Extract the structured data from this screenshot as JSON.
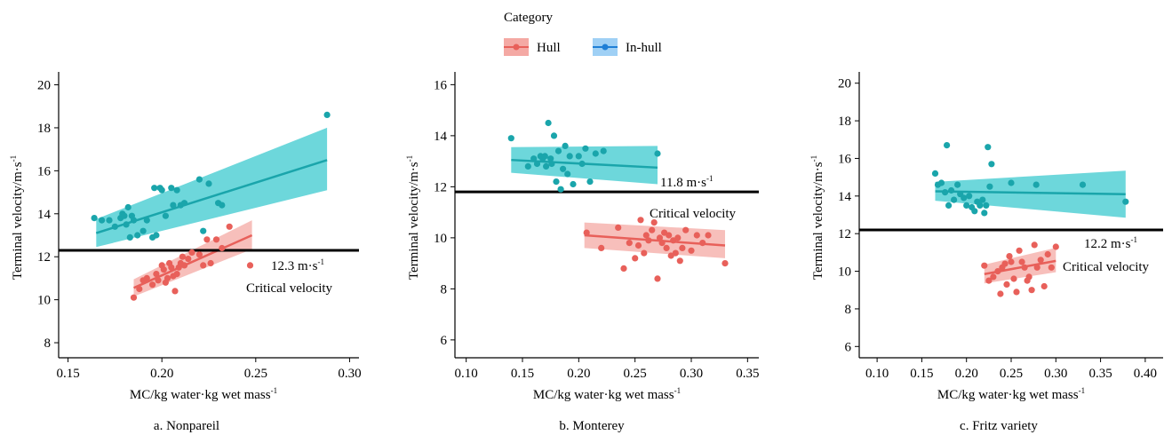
{
  "legend": {
    "title": "Category",
    "placement": "top-center",
    "entries": [
      {
        "label": "Hull",
        "color": "#e8605a",
        "band": "#f4a9a4"
      },
      {
        "label": "In-hull",
        "color": "#1aa5ab",
        "band": "#3cc9cf"
      }
    ]
  },
  "chart_data": [
    {
      "type": "scatter",
      "caption": "a. Nonpareil",
      "xlabel": "MC/kg water·kg wet mass",
      "xlabel_sup": "-1",
      "ylabel": "Terminal velocity/m·s",
      "ylabel_sup": "-1",
      "xlim": [
        0.145,
        0.305
      ],
      "ylim": [
        7.3,
        20.6
      ],
      "xticks": [
        0.15,
        0.2,
        0.25,
        0.3
      ],
      "xtick_labels": [
        "0.15",
        "0.20",
        "0.25",
        "0.30"
      ],
      "yticks": [
        8,
        10,
        12,
        14,
        16,
        18,
        20
      ],
      "ytick_labels": [
        "8",
        "10",
        "12",
        "14",
        "16",
        "18",
        "20"
      ],
      "grid": false,
      "critical": {
        "value": 12.3,
        "label": "12.3 m·s",
        "sup": "-1",
        "sublabel": "Critical velocity"
      },
      "series": [
        {
          "name": "Hull",
          "color": "#e8605a",
          "band": "#f4a9a4",
          "x": [
            0.185,
            0.188,
            0.19,
            0.192,
            0.195,
            0.197,
            0.198,
            0.2,
            0.201,
            0.202,
            0.203,
            0.204,
            0.205,
            0.206,
            0.207,
            0.208,
            0.209,
            0.21,
            0.211,
            0.212,
            0.214,
            0.216,
            0.22,
            0.222,
            0.224,
            0.226,
            0.229,
            0.232,
            0.236,
            0.247
          ],
          "y": [
            10.1,
            10.5,
            10.9,
            11.0,
            10.7,
            11.2,
            10.9,
            11.6,
            11.4,
            10.8,
            11.0,
            11.7,
            11.5,
            11.1,
            10.4,
            11.2,
            11.5,
            11.7,
            12.0,
            11.6,
            11.9,
            12.2,
            12.1,
            11.6,
            12.8,
            11.7,
            12.8,
            12.4,
            13.4,
            11.6
          ],
          "fit": {
            "x": [
              0.185,
              0.248
            ],
            "y": [
              10.55,
              13.0
            ],
            "band_low": [
              10.15,
              12.35
            ],
            "band_high": [
              10.95,
              13.7
            ]
          }
        },
        {
          "name": "In-hull",
          "color": "#1aa5ab",
          "band": "#3cc9cf",
          "x": [
            0.164,
            0.168,
            0.172,
            0.175,
            0.178,
            0.179,
            0.18,
            0.181,
            0.182,
            0.183,
            0.184,
            0.185,
            0.187,
            0.19,
            0.192,
            0.195,
            0.196,
            0.197,
            0.199,
            0.2,
            0.202,
            0.205,
            0.206,
            0.208,
            0.21,
            0.212,
            0.22,
            0.222,
            0.225,
            0.23,
            0.232,
            0.288
          ],
          "y": [
            13.8,
            13.7,
            13.7,
            13.4,
            13.8,
            14.0,
            13.9,
            13.5,
            14.3,
            12.9,
            13.9,
            13.7,
            13.0,
            13.2,
            13.7,
            12.9,
            15.2,
            13.0,
            15.2,
            15.1,
            13.9,
            15.2,
            14.4,
            15.1,
            14.4,
            14.5,
            15.6,
            13.2,
            15.4,
            14.5,
            14.4,
            18.6
          ],
          "fit": {
            "x": [
              0.165,
              0.288
            ],
            "y": [
              13.1,
              16.5
            ],
            "band_low": [
              12.45,
              15.1
            ],
            "band_high": [
              13.75,
              18.0
            ]
          }
        }
      ]
    },
    {
      "type": "scatter",
      "caption": "b. Monterey",
      "xlabel": "MC/kg water·kg wet mass",
      "xlabel_sup": "-1",
      "ylabel": "Terminal velocity/m·s",
      "ylabel_sup": "-1",
      "xlim": [
        0.09,
        0.36
      ],
      "ylim": [
        5.3,
        16.5
      ],
      "xticks": [
        0.1,
        0.15,
        0.2,
        0.25,
        0.3,
        0.35
      ],
      "xtick_labels": [
        "0.10",
        "0.15",
        "0.20",
        "0.25",
        "0.30",
        "0.35"
      ],
      "yticks": [
        6,
        8,
        10,
        12,
        14,
        16
      ],
      "ytick_labels": [
        "6",
        "8",
        "10",
        "12",
        "14",
        "16"
      ],
      "grid": false,
      "critical": {
        "value": 11.8,
        "label": "11.8 m·s",
        "sup": "-1",
        "sublabel": "Critical velocity"
      },
      "series": [
        {
          "name": "Hull",
          "color": "#e8605a",
          "band": "#f4a9a4",
          "x": [
            0.207,
            0.22,
            0.235,
            0.24,
            0.245,
            0.25,
            0.253,
            0.255,
            0.258,
            0.26,
            0.262,
            0.265,
            0.267,
            0.27,
            0.272,
            0.274,
            0.276,
            0.278,
            0.28,
            0.282,
            0.284,
            0.286,
            0.288,
            0.29,
            0.292,
            0.295,
            0.3,
            0.305,
            0.31,
            0.315,
            0.33
          ],
          "y": [
            10.2,
            9.6,
            10.4,
            8.8,
            9.8,
            9.2,
            9.7,
            10.7,
            9.4,
            10.1,
            9.9,
            10.3,
            10.6,
            8.4,
            10.0,
            9.8,
            10.2,
            9.6,
            10.1,
            9.3,
            9.9,
            9.4,
            10.0,
            9.1,
            9.6,
            10.3,
            9.5,
            10.1,
            9.8,
            10.1,
            9.0
          ],
          "fit": {
            "x": [
              0.205,
              0.33
            ],
            "y": [
              10.1,
              9.7
            ],
            "band_low": [
              9.6,
              9.2
            ],
            "band_high": [
              10.6,
              10.3
            ]
          }
        },
        {
          "name": "In-hull",
          "color": "#1aa5ab",
          "band": "#3cc9cf",
          "x": [
            0.14,
            0.155,
            0.16,
            0.163,
            0.166,
            0.168,
            0.17,
            0.171,
            0.173,
            0.175,
            0.176,
            0.178,
            0.18,
            0.182,
            0.184,
            0.186,
            0.188,
            0.19,
            0.192,
            0.195,
            0.2,
            0.203,
            0.206,
            0.21,
            0.215,
            0.222,
            0.27
          ],
          "y": [
            13.9,
            12.8,
            13.1,
            12.9,
            13.2,
            13.1,
            13.2,
            12.8,
            14.5,
            13.1,
            12.9,
            14.0,
            12.2,
            13.4,
            11.9,
            12.7,
            13.6,
            12.5,
            13.2,
            12.1,
            13.2,
            12.9,
            13.5,
            12.2,
            13.3,
            13.4,
            13.3
          ],
          "fit": {
            "x": [
              0.14,
              0.27
            ],
            "y": [
              13.05,
              12.75
            ],
            "band_low": [
              12.55,
              12.1
            ],
            "band_high": [
              13.55,
              13.6
            ]
          }
        }
      ]
    },
    {
      "type": "scatter",
      "caption": "c. Fritz variety",
      "xlabel": "MC/kg water·kg wet mass",
      "xlabel_sup": "-1",
      "ylabel": "Terminal velocity/m·s",
      "ylabel_sup": "-1",
      "xlim": [
        0.08,
        0.42
      ],
      "ylim": [
        5.4,
        20.6
      ],
      "xticks": [
        0.1,
        0.15,
        0.2,
        0.25,
        0.3,
        0.35,
        0.4
      ],
      "xtick_labels": [
        "0.10",
        "0.15",
        "0.20",
        "0.25",
        "0.30",
        "0.35",
        "0.40"
      ],
      "yticks": [
        6,
        8,
        10,
        12,
        14,
        16,
        18,
        20
      ],
      "ytick_labels": [
        "6",
        "8",
        "10",
        "12",
        "14",
        "16",
        "18",
        "20"
      ],
      "grid": false,
      "critical": {
        "value": 12.2,
        "label": "12.2 m·s",
        "sup": "-1",
        "sublabel": "Critical velocity"
      },
      "series": [
        {
          "name": "Hull",
          "color": "#e8605a",
          "band": "#f4a9a4",
          "x": [
            0.22,
            0.225,
            0.23,
            0.235,
            0.238,
            0.24,
            0.243,
            0.245,
            0.248,
            0.25,
            0.253,
            0.256,
            0.259,
            0.262,
            0.265,
            0.268,
            0.27,
            0.273,
            0.276,
            0.279,
            0.283,
            0.287,
            0.291,
            0.295,
            0.3
          ],
          "y": [
            10.3,
            9.5,
            9.7,
            10.0,
            8.8,
            10.2,
            10.4,
            9.3,
            10.8,
            10.5,
            9.6,
            8.9,
            11.1,
            10.5,
            10.2,
            9.5,
            9.7,
            9.0,
            11.4,
            10.2,
            10.6,
            9.2,
            10.9,
            10.2,
            11.3
          ],
          "fit": {
            "x": [
              0.22,
              0.3
            ],
            "y": [
              9.85,
              10.55
            ],
            "band_low": [
              9.35,
              9.95
            ],
            "band_high": [
              10.35,
              11.25
            ]
          }
        },
        {
          "name": "In-hull",
          "color": "#1aa5ab",
          "band": "#3cc9cf",
          "x": [
            0.165,
            0.168,
            0.172,
            0.176,
            0.178,
            0.18,
            0.183,
            0.186,
            0.19,
            0.193,
            0.197,
            0.2,
            0.203,
            0.206,
            0.209,
            0.212,
            0.215,
            0.218,
            0.22,
            0.222,
            0.224,
            0.226,
            0.228,
            0.25,
            0.278,
            0.33,
            0.378
          ],
          "y": [
            15.2,
            14.6,
            14.7,
            14.2,
            16.7,
            13.5,
            14.3,
            13.8,
            14.6,
            14.1,
            13.9,
            13.5,
            14.0,
            13.4,
            13.2,
            13.7,
            13.5,
            13.8,
            13.1,
            13.5,
            16.6,
            14.5,
            15.7,
            14.7,
            14.6,
            14.6,
            13.7
          ],
          "fit": {
            "x": [
              0.165,
              0.378
            ],
            "y": [
              14.25,
              14.1
            ],
            "band_low": [
              13.75,
              12.85
            ],
            "band_high": [
              14.75,
              15.35
            ]
          }
        }
      ]
    }
  ]
}
